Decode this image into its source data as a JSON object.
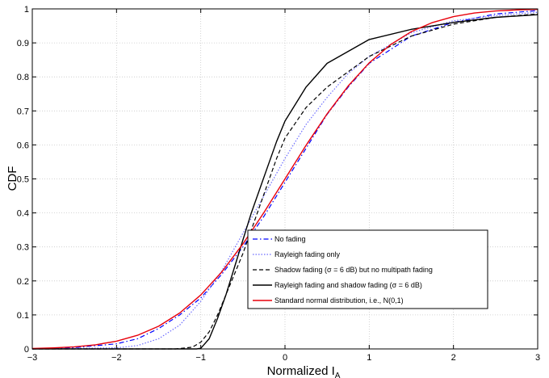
{
  "chart_data": {
    "type": "line",
    "title": "",
    "xlabel": "Normalized I",
    "xlabel_subscript": "A",
    "ylabel": "CDF",
    "xlim": [
      -3,
      3
    ],
    "ylim": [
      0,
      1
    ],
    "x_ticks": [
      "−3",
      "−2",
      "−1",
      "0",
      "1",
      "2",
      "3"
    ],
    "y_ticks": [
      "0",
      "0.1",
      "0.2",
      "0.3",
      "0.4",
      "0.5",
      "0.6",
      "0.7",
      "0.8",
      "0.9",
      "1"
    ],
    "grid": true,
    "legend_position": "bottom-right",
    "series": [
      {
        "name": "No fading",
        "color": "#0000ff",
        "style": "dashdot",
        "x": [
          -3,
          -2.5,
          -2,
          -1.75,
          -1.5,
          -1.25,
          -1,
          -0.75,
          -0.5,
          -0.25,
          0,
          0.25,
          0.5,
          0.75,
          1,
          1.5,
          2,
          2.5,
          3
        ],
        "y": [
          0,
          0.004,
          0.015,
          0.03,
          0.06,
          0.1,
          0.15,
          0.22,
          0.3,
          0.39,
          0.49,
          0.59,
          0.69,
          0.77,
          0.84,
          0.92,
          0.96,
          0.985,
          0.995
        ]
      },
      {
        "name": "Rayleigh fading only",
        "color": "#6b6bff",
        "style": "dotted",
        "x": [
          -3,
          -2,
          -1.75,
          -1.5,
          -1.25,
          -1,
          -0.75,
          -0.5,
          -0.25,
          0,
          0.25,
          0.5,
          0.75,
          1,
          1.5,
          2,
          2.5,
          3
        ],
        "y": [
          0,
          0.003,
          0.01,
          0.03,
          0.07,
          0.14,
          0.23,
          0.34,
          0.45,
          0.56,
          0.66,
          0.74,
          0.81,
          0.86,
          0.93,
          0.965,
          0.98,
          0.99
        ]
      },
      {
        "name": "Shadow fading (σ = 6 dB) but no multipath fading",
        "color": "#000000",
        "style": "dashed",
        "x": [
          -3,
          -1.3,
          -1.1,
          -1,
          -0.9,
          -0.8,
          -0.7,
          -0.6,
          -0.5,
          -0.4,
          -0.3,
          -0.2,
          -0.1,
          0,
          0.25,
          0.5,
          1,
          1.5,
          2,
          2.5,
          3
        ],
        "y": [
          0,
          0,
          0.005,
          0.02,
          0.05,
          0.1,
          0.16,
          0.22,
          0.28,
          0.35,
          0.42,
          0.49,
          0.56,
          0.62,
          0.71,
          0.77,
          0.86,
          0.92,
          0.955,
          0.975,
          0.985
        ]
      },
      {
        "name": "Rayleigh fading and shadow fading (σ = 6 dB)",
        "color": "#000000",
        "style": "solid",
        "x": [
          -3,
          -1.05,
          -1,
          -0.9,
          -0.8,
          -0.7,
          -0.6,
          -0.5,
          -0.4,
          -0.3,
          -0.2,
          -0.1,
          0,
          0.25,
          0.5,
          1,
          1.5,
          2,
          2.5,
          3
        ],
        "y": [
          0,
          0,
          0.002,
          0.03,
          0.09,
          0.16,
          0.24,
          0.32,
          0.4,
          0.47,
          0.54,
          0.61,
          0.67,
          0.77,
          0.84,
          0.91,
          0.94,
          0.96,
          0.975,
          0.983
        ]
      },
      {
        "name": "Standard normal distribution, i.e., N(0,1)",
        "color": "#e8000b",
        "style": "solid",
        "x": [
          -3,
          -2.75,
          -2.5,
          -2.25,
          -2,
          -1.75,
          -1.5,
          -1.25,
          -1,
          -0.75,
          -0.5,
          -0.25,
          0,
          0.25,
          0.5,
          0.75,
          1,
          1.25,
          1.5,
          1.75,
          2,
          2.25,
          2.5,
          2.75,
          3
        ],
        "y": [
          0.0013,
          0.003,
          0.0062,
          0.0122,
          0.0228,
          0.0401,
          0.0668,
          0.1056,
          0.1587,
          0.2266,
          0.3085,
          0.4013,
          0.5,
          0.5987,
          0.6915,
          0.7734,
          0.8413,
          0.8944,
          0.9332,
          0.9599,
          0.9772,
          0.9878,
          0.9938,
          0.997,
          0.9987
        ]
      }
    ],
    "legend": {
      "labels": [
        "No fading",
        "Rayleigh fading only",
        "Shadow fading (σ = 6 dB) but no multipath fading",
        "Rayleigh fading and shadow fading (σ = 6 dB)",
        "Standard normal distribution, i.e., N(0,1)"
      ]
    }
  }
}
